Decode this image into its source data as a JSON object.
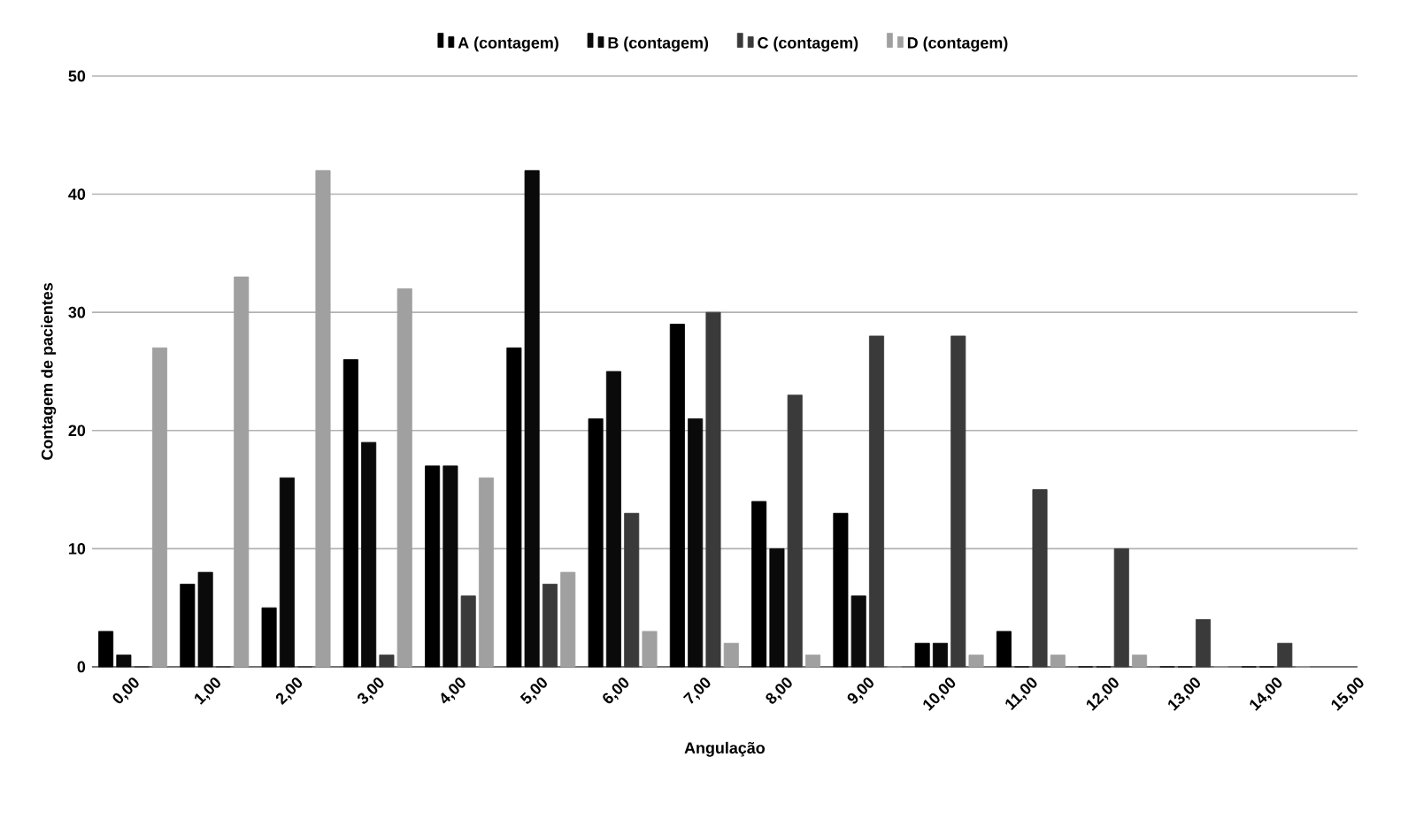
{
  "chart_data": {
    "type": "bar",
    "xlabel": "Angulação",
    "ylabel": "Contagem de pacientes",
    "categories": [
      "0,00",
      "1,00",
      "2,00",
      "3,00",
      "4,00",
      "5,00",
      "6,00",
      "7,00",
      "8,00",
      "9,00",
      "10,00",
      "11,00",
      "12,00",
      "13,00",
      "14,00",
      "15,00"
    ],
    "series": [
      {
        "name": "A (contagem)",
        "color": "#000000",
        "values": [
          3,
          7,
          5,
          26,
          17,
          27,
          21,
          29,
          14,
          13,
          2,
          3,
          0,
          0,
          0,
          null
        ]
      },
      {
        "name": "B (contagem)",
        "color": "#0a0a0a",
        "values": [
          1,
          8,
          16,
          19,
          17,
          42,
          25,
          21,
          10,
          6,
          2,
          0,
          0,
          0,
          0,
          null
        ]
      },
      {
        "name": "C (contagem)",
        "color": "#3a3a3a",
        "values": [
          0,
          0,
          0,
          1,
          6,
          7,
          13,
          30,
          23,
          28,
          28,
          15,
          10,
          4,
          2,
          null
        ]
      },
      {
        "name": "D (contagem)",
        "color": "#a0a0a0",
        "values": [
          27,
          33,
          42,
          32,
          16,
          8,
          3,
          2,
          1,
          0,
          1,
          1,
          1,
          0,
          0,
          null
        ]
      }
    ],
    "ylim": [
      0,
      50
    ],
    "yticks": [
      0,
      10,
      20,
      30,
      40,
      50
    ],
    "grid": "y",
    "legend": "top"
  }
}
